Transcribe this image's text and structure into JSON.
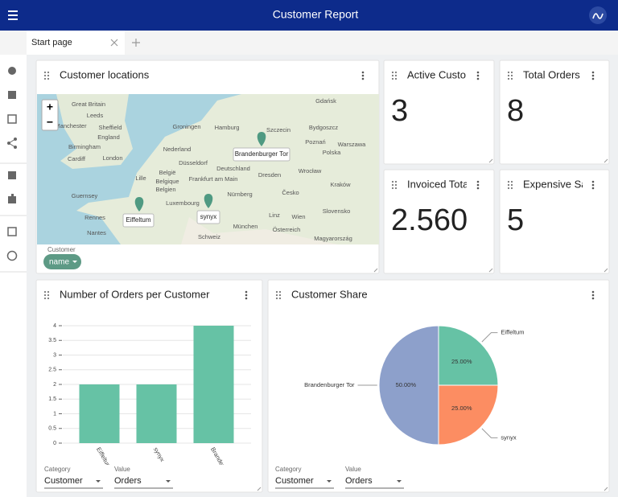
{
  "header": {
    "title": "Customer Report"
  },
  "tabs": [
    "Start page"
  ],
  "map": {
    "title": "Customer locations",
    "zoom_in": "+",
    "zoom_out": "−",
    "labels": [
      "Great Britain",
      "Leeds",
      "Manchester",
      "Sheffield",
      "England",
      "Birmingham",
      "Cardiff",
      "London",
      "Guernsey",
      "Rennes",
      "Nantes",
      "Lille",
      "België",
      "Belgique",
      "Belgien",
      "Luxembourg",
      "Nederland",
      "Groningen",
      "Hamburg",
      "Deutschland",
      "Düsseldorf",
      "Frankfurt am Main",
      "Nürnberg",
      "München",
      "Schweiz",
      "Dresden",
      "Szczecin",
      "Gdańsk",
      "Bydgoszcz",
      "Poznań",
      "Polska",
      "Warszawa",
      "Wrocław",
      "Kraków",
      "Česko",
      "Linz",
      "Wien",
      "Österreich",
      "Slovensko",
      "Magyarország"
    ],
    "markers": [
      "Eiffeltum",
      "Brandenburger Tor",
      "synyx"
    ],
    "filter_label": "Customer",
    "filter_chip": "name"
  },
  "kpis": [
    {
      "title": "Active Custo",
      "value": 3
    },
    {
      "title": "Total Orders",
      "value": 8
    },
    {
      "title": "Invoiced Tota",
      "value": {
        "value": 2560,
        "label": "2.560"
      }
    },
    {
      "title": "Expensive Sa",
      "value": 5
    }
  ],
  "orders": {
    "chart_data": {
      "type": "bar",
      "title": "Number of Orders per Customer",
      "categories": [
        "Eiffeltum",
        "synyx",
        "Brandenburger Tor"
      ],
      "values": [
        2,
        2,
        4
      ],
      "color": "#66c2a5",
      "ylim": [
        0,
        4
      ],
      "yticks": [
        0,
        0.5,
        1,
        1.5,
        2,
        2.5,
        3,
        3.5,
        4
      ],
      "grid": true
    },
    "controls": [
      {
        "label": "Category",
        "value": "Customer"
      },
      {
        "label": "Value",
        "value": "Orders"
      }
    ]
  },
  "share": {
    "chart_data": {
      "type": "pie",
      "title": "Customer Share",
      "categories": [
        "Eiffeltum",
        "synyx",
        "Brandenburger Tor"
      ],
      "values": [
        25,
        25,
        50
      ],
      "value_labels": [
        "25.00%",
        "25.00%",
        "50.00%"
      ],
      "colors": [
        "#66c2a5",
        "#fc8d62",
        "#8da0cb"
      ]
    },
    "controls": [
      {
        "label": "Category",
        "value": "Customer"
      },
      {
        "label": "Value",
        "value": "Orders"
      }
    ]
  }
}
